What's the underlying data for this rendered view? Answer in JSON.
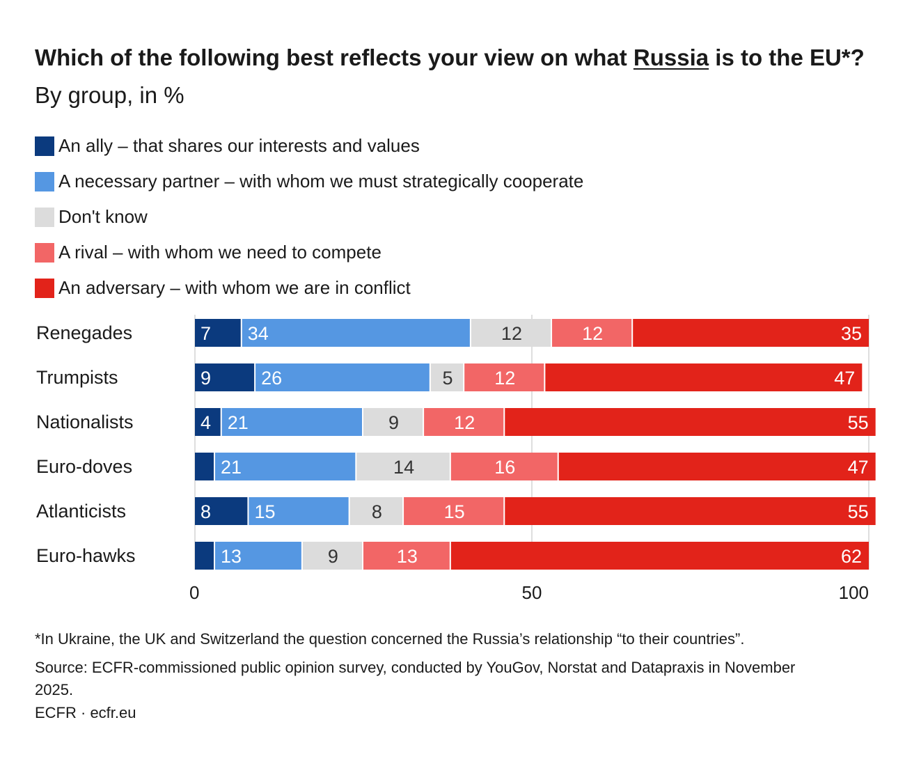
{
  "title": {
    "bold_before": "Which of the following best reflects your view on what ",
    "bold_underlined": "Russia",
    "bold_after": " is to the EU*?",
    "subtitle": " By group, in %"
  },
  "legend": [
    {
      "label": "An ally – that shares our interests and values",
      "color": "#0b3a7e"
    },
    {
      "label": "A necessary partner – with whom we must strategically cooperate",
      "color": "#5597e2"
    },
    {
      "label": "Don't know",
      "color": "#dcdcdc"
    },
    {
      "label": "A rival – with whom we need to compete",
      "color": "#f26666"
    },
    {
      "label": "An adversary – with whom we are in conflict",
      "color": "#e2231a"
    }
  ],
  "chart_data": {
    "type": "bar",
    "orientation": "horizontal",
    "stacked": true,
    "categories": [
      "Renegades",
      "Trumpists",
      "Nationalists",
      "Euro-doves",
      "Atlanticists",
      "Euro-hawks"
    ],
    "series": [
      {
        "name": "An ally – that shares our interests and values",
        "color": "#0b3a7e",
        "label_color": "#ffffff",
        "values": [
          7,
          9,
          4,
          3,
          8,
          3
        ],
        "labels": [
          "7",
          "9",
          "4",
          "",
          "8",
          ""
        ]
      },
      {
        "name": "A necessary partner – with whom we must strategically cooperate",
        "color": "#5597e2",
        "label_color": "#ffffff",
        "values": [
          34,
          26,
          21,
          21,
          15,
          13
        ],
        "labels": [
          "34",
          "26",
          "21",
          "21",
          "15",
          "13"
        ]
      },
      {
        "name": "Don't know",
        "color": "#dcdcdc",
        "label_color": "#333333",
        "values": [
          12,
          5,
          9,
          14,
          8,
          9
        ],
        "labels": [
          "12",
          "5",
          "9",
          "14",
          "8",
          "9"
        ]
      },
      {
        "name": "A rival – with whom we need to compete",
        "color": "#f26666",
        "label_color": "#ffffff",
        "values": [
          12,
          12,
          12,
          16,
          15,
          13
        ],
        "labels": [
          "12",
          "12",
          "12",
          "16",
          "15",
          "13"
        ]
      },
      {
        "name": "An adversary – with whom we are in conflict",
        "color": "#e2231a",
        "label_color": "#ffffff",
        "values": [
          35,
          47,
          55,
          47,
          55,
          62
        ],
        "labels": [
          "35",
          "47",
          "55",
          "47",
          "55",
          "62"
        ]
      }
    ],
    "xlim": [
      0,
      100
    ],
    "xticks": [
      0,
      50,
      100
    ],
    "xtick_labels": [
      "0",
      "50",
      "100"
    ],
    "gridlines": true,
    "legend_position": "top-left"
  },
  "footnote": "*In Ukraine, the UK and Switzerland the question concerned the Russia’s relationship “to their countries”.",
  "source": "Source: ECFR-commissioned public opinion survey, conducted by YouGov, Norstat and Datapraxis in November 2025.",
  "credit": "ECFR · ecfr.eu"
}
